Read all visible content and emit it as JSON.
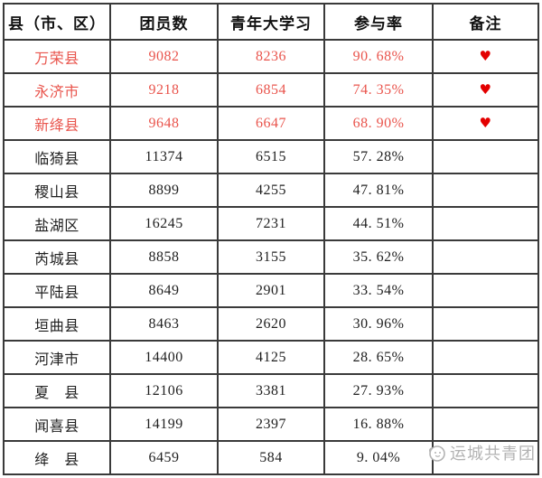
{
  "table": {
    "headers": [
      "县（市、区）",
      "团员数",
      "青年大学习",
      "参与率",
      "备注"
    ],
    "rows": [
      {
        "county": "万荣县",
        "members": "9082",
        "study": "8236",
        "rate": "90. 68%",
        "remark": "♥",
        "highlight": true
      },
      {
        "county": "永济市",
        "members": "9218",
        "study": "6854",
        "rate": "74. 35%",
        "remark": "♥",
        "highlight": true
      },
      {
        "county": "新绛县",
        "members": "9648",
        "study": "6647",
        "rate": "68. 90%",
        "remark": "♥",
        "highlight": true
      },
      {
        "county": "临猗县",
        "members": "11374",
        "study": "6515",
        "rate": "57. 28%",
        "remark": "",
        "highlight": false
      },
      {
        "county": "稷山县",
        "members": "8899",
        "study": "4255",
        "rate": "47. 81%",
        "remark": "",
        "highlight": false
      },
      {
        "county": "盐湖区",
        "members": "16245",
        "study": "7231",
        "rate": "44. 51%",
        "remark": "",
        "highlight": false
      },
      {
        "county": "芮城县",
        "members": "8858",
        "study": "3155",
        "rate": "35. 62%",
        "remark": "",
        "highlight": false
      },
      {
        "county": "平陆县",
        "members": "8649",
        "study": "2901",
        "rate": "33. 54%",
        "remark": "",
        "highlight": false
      },
      {
        "county": "垣曲县",
        "members": "8463",
        "study": "2620",
        "rate": "30. 96%",
        "remark": "",
        "highlight": false
      },
      {
        "county": "河津市",
        "members": "14400",
        "study": "4125",
        "rate": "28. 65%",
        "remark": "",
        "highlight": false
      },
      {
        "county": "夏　县",
        "members": "12106",
        "study": "3381",
        "rate": "27. 93%",
        "remark": "",
        "highlight": false
      },
      {
        "county": "闻喜县",
        "members": "14199",
        "study": "2397",
        "rate": "16. 88%",
        "remark": "",
        "highlight": false
      },
      {
        "county": "绛　县",
        "members": "6459",
        "study": "584",
        "rate": "9. 04%",
        "remark": "",
        "highlight": false
      }
    ]
  },
  "watermark": {
    "text": "运城共青团"
  },
  "colors": {
    "border": "#3a3a3a",
    "normal_text": "#1f1f1f",
    "highlight_text": "#e9544c",
    "heart": "#e30000",
    "watermark": "#b3b3b3"
  }
}
